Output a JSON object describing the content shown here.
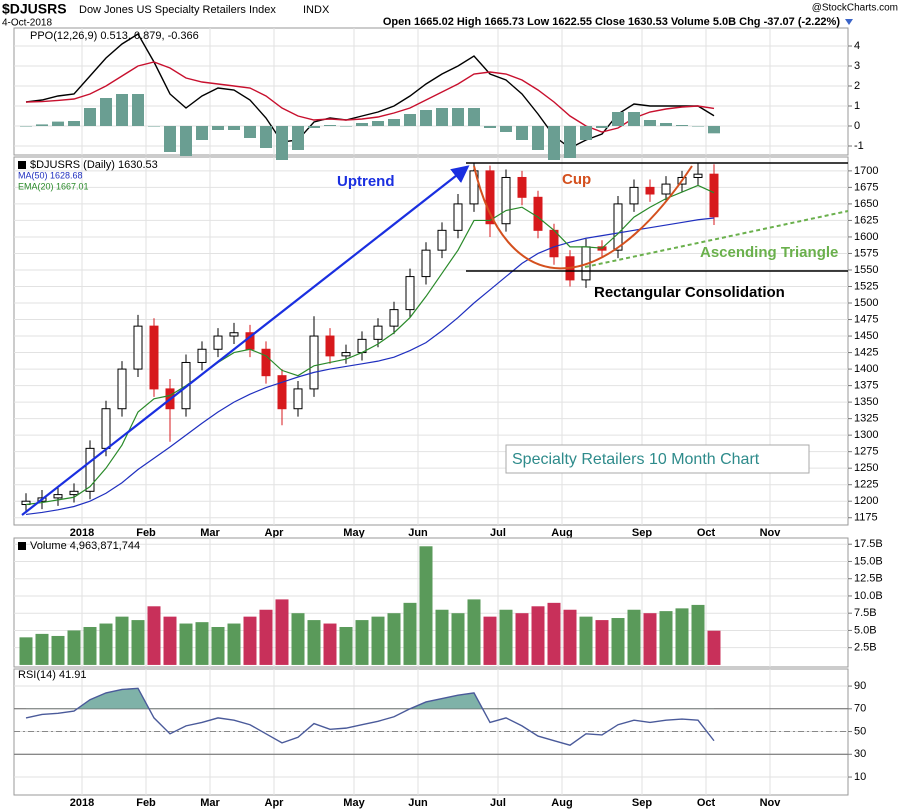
{
  "header": {
    "symbol": "$DJUSRS",
    "name": "Dow Jones US Specialty Retailers Index",
    "exchange": "INDX",
    "date": "4-Oct-2018",
    "quote": "Open 1665.02 High 1665.73 Low 1622.55 Close 1630.53 Volume 5.0B Chg -37.07 (-2.22%)",
    "credit": "@StockCharts.com"
  },
  "chart_data": [
    {
      "type": "line",
      "label": "PPO(12,26,9) 0.513, 0.879, -0.366",
      "ylim": [
        -1.45,
        4.9
      ],
      "yticks": [
        -1,
        0,
        1,
        2,
        3,
        4
      ],
      "grid": true,
      "series": [
        {
          "color": "#000000",
          "values": [
            1.2,
            1.3,
            1.5,
            1.6,
            2.5,
            3.4,
            4.1,
            4.6,
            3.2,
            1.6,
            0.9,
            1.5,
            1.9,
            1.8,
            1.3,
            0.4,
            -0.8,
            -0.7,
            0.2,
            0.4,
            0.3,
            0.5,
            0.7,
            1.0,
            1.5,
            2.1,
            2.6,
            3.0,
            3.5,
            2.6,
            2.3,
            1.6,
            0.6,
            -0.5,
            -1.1,
            -0.7,
            -0.4,
            0.6,
            1.1,
            1.0,
            1.0,
            1.0,
            1.0,
            0.513,
            null,
            null,
            null,
            null,
            null,
            null,
            null,
            null
          ]
        },
        {
          "color": "#c8102e",
          "values": [
            1.2,
            1.22,
            1.28,
            1.35,
            1.6,
            2.0,
            2.5,
            3.0,
            3.2,
            2.9,
            2.4,
            2.2,
            2.1,
            2.0,
            1.9,
            1.5,
            0.9,
            0.5,
            0.3,
            0.35,
            0.3,
            0.35,
            0.45,
            0.65,
            0.9,
            1.3,
            1.7,
            2.1,
            2.6,
            2.7,
            2.6,
            2.3,
            1.8,
            1.2,
            0.5,
            0.0,
            -0.3,
            -0.1,
            0.4,
            0.7,
            0.85,
            0.95,
            1.0,
            0.879,
            null,
            null,
            null,
            null,
            null,
            null,
            null,
            null
          ]
        },
        {
          "type": "bar",
          "color": "#6a9e92",
          "values": [
            0,
            0.08,
            0.22,
            0.25,
            0.9,
            1.4,
            1.6,
            1.6,
            0,
            -1.3,
            -1.5,
            -0.7,
            -0.2,
            -0.2,
            -0.6,
            -1.1,
            -1.7,
            -1.2,
            -0.1,
            0.05,
            0,
            0.15,
            0.25,
            0.35,
            0.6,
            0.8,
            0.9,
            0.9,
            0.9,
            -0.1,
            -0.3,
            -0.7,
            -1.2,
            -1.7,
            -1.6,
            -0.7,
            -0.1,
            0.7,
            0.7,
            0.3,
            0.15,
            0.05,
            0,
            -0.366,
            null,
            null,
            null,
            null,
            null,
            null,
            null,
            null
          ]
        }
      ]
    },
    {
      "type": "candlestick",
      "label": "$DJUSRS (Daily) 1630.53",
      "categories": [
        null,
        null,
        null,
        null,
        "2018",
        null,
        null,
        null,
        "Feb",
        null,
        null,
        null,
        "Mar",
        null,
        null,
        null,
        "Apr",
        null,
        null,
        null,
        null,
        "May",
        null,
        null,
        null,
        "Jun",
        null,
        null,
        null,
        null,
        "Jul",
        null,
        null,
        null,
        "Aug",
        null,
        null,
        null,
        null,
        "Sep",
        null,
        null,
        null,
        "Oct",
        null,
        null,
        null,
        "Nov",
        null,
        null,
        null,
        null
      ],
      "ylim": [
        1164,
        1721
      ],
      "yticks": [
        1175,
        1200,
        1225,
        1250,
        1275,
        1300,
        1325,
        1350,
        1375,
        1400,
        1425,
        1450,
        1475,
        1500,
        1525,
        1550,
        1575,
        1600,
        1625,
        1650,
        1675,
        1700
      ],
      "grid": true,
      "up_color": "#000000",
      "down_color": "#d7191c",
      "open": [
        1195,
        1200,
        1205,
        1210,
        1215,
        1280,
        1340,
        1400,
        1465,
        1370,
        1340,
        1410,
        1430,
        1450,
        1455,
        1430,
        1390,
        1340,
        1370,
        1450,
        1420,
        1425,
        1445,
        1465,
        1490,
        1540,
        1580,
        1610,
        1650,
        1700,
        1620,
        1690,
        1660,
        1610,
        1570,
        1535,
        1585,
        1580,
        1650,
        1675,
        1665,
        1680,
        1690,
        1695,
        null,
        null,
        null,
        null,
        null,
        null,
        null,
        null
      ],
      "high": [
        1212,
        1217,
        1222,
        1227,
        1292,
        1352,
        1412,
        1482,
        1477,
        1385,
        1422,
        1442,
        1462,
        1470,
        1467,
        1442,
        1400,
        1382,
        1480,
        1462,
        1437,
        1457,
        1477,
        1502,
        1552,
        1592,
        1622,
        1665,
        1712,
        1708,
        1702,
        1700,
        1670,
        1620,
        1580,
        1597,
        1595,
        1662,
        1687,
        1687,
        1692,
        1700,
        1712,
        1710,
        null,
        null,
        null,
        null,
        null,
        null,
        null,
        null
      ],
      "low": [
        1183,
        1188,
        1193,
        1198,
        1203,
        1268,
        1328,
        1388,
        1358,
        1290,
        1328,
        1398,
        1418,
        1438,
        1418,
        1378,
        1315,
        1328,
        1358,
        1408,
        1408,
        1413,
        1433,
        1453,
        1478,
        1528,
        1568,
        1598,
        1638,
        1600,
        1608,
        1648,
        1598,
        1558,
        1525,
        1523,
        1568,
        1568,
        1638,
        1653,
        1653,
        1668,
        1678,
        1618,
        null,
        null,
        null,
        null,
        null,
        null,
        null,
        null
      ],
      "close": [
        1200,
        1205,
        1210,
        1215,
        1280,
        1340,
        1400,
        1465,
        1370,
        1340,
        1410,
        1430,
        1450,
        1455,
        1430,
        1390,
        1340,
        1370,
        1450,
        1420,
        1425,
        1445,
        1465,
        1490,
        1540,
        1580,
        1610,
        1650,
        1700,
        1620,
        1690,
        1660,
        1610,
        1570,
        1535,
        1585,
        1580,
        1650,
        1675,
        1665,
        1680,
        1690,
        1695,
        1630.53,
        null,
        null,
        null,
        null,
        null,
        null,
        null,
        null
      ],
      "series": [
        {
          "name": "MA(50) 1628.68",
          "color": "#1f2fbf",
          "values": [
            1180,
            1183,
            1187,
            1192,
            1200,
            1212,
            1228,
            1248,
            1265,
            1282,
            1300,
            1318,
            1335,
            1350,
            1362,
            1372,
            1380,
            1388,
            1395,
            1400,
            1404,
            1408,
            1412,
            1418,
            1428,
            1440,
            1458,
            1478,
            1500,
            1520,
            1540,
            1560,
            1575,
            1585,
            1592,
            1598,
            1602,
            1606,
            1610,
            1614,
            1618,
            1622,
            1626,
            1628.68,
            null,
            null,
            null,
            null,
            null,
            null,
            null,
            null
          ]
        },
        {
          "name": "EMA(20) 1667.01",
          "color": "#2a8a2a",
          "values": [
            1195,
            1198,
            1202,
            1206,
            1222,
            1250,
            1285,
            1335,
            1355,
            1360,
            1375,
            1392,
            1410,
            1425,
            1430,
            1420,
            1398,
            1390,
            1405,
            1410,
            1415,
            1425,
            1438,
            1455,
            1478,
            1510,
            1545,
            1580,
            1625,
            1625,
            1640,
            1645,
            1630,
            1610,
            1585,
            1585,
            1583,
            1605,
            1630,
            1645,
            1658,
            1668,
            1678,
            1667.01,
            null,
            null,
            null,
            null,
            null,
            null,
            null,
            null
          ]
        }
      ],
      "annotations": [
        "Uptrend",
        "Cup",
        "Ascending Triangle",
        "Rectangular Consolidation",
        "Specialty Retailers 10 Month Chart"
      ]
    },
    {
      "type": "bar",
      "label": "Volume 4,963,871,744",
      "ylim": [
        -0.3,
        18.4
      ],
      "yticks": [
        {
          "value": 2.5,
          "label": "2.5B"
        },
        {
          "value": 5,
          "label": "5.0B"
        },
        {
          "value": 7.5,
          "label": "7.5B"
        },
        {
          "value": 10,
          "label": "10.0B"
        },
        {
          "value": 12.5,
          "label": "12.5B"
        },
        {
          "value": 15,
          "label": "15.0B"
        },
        {
          "value": 17.5,
          "label": "17.5B"
        }
      ],
      "grid": true,
      "up_color": "#5a9a5a",
      "down_color": "#c8305a",
      "values": [
        4,
        4.5,
        4.2,
        5,
        5.5,
        6,
        7,
        6.5,
        8.5,
        7,
        6,
        6.2,
        5.5,
        6,
        7,
        8,
        9.5,
        7.5,
        6.5,
        6,
        5.5,
        6.5,
        7,
        7.5,
        9,
        17.2,
        8,
        7.5,
        9.5,
        7,
        8,
        7.5,
        8.5,
        9,
        8,
        7,
        6.5,
        6.8,
        8,
        7.5,
        7.8,
        8.2,
        8.7,
        4.96,
        null,
        null,
        null,
        null,
        null,
        null,
        null,
        null
      ]
    },
    {
      "type": "line",
      "label": "RSI(14) 41.91",
      "categories": [
        null,
        null,
        null,
        null,
        "2018",
        null,
        null,
        null,
        "Feb",
        null,
        null,
        null,
        "Mar",
        null,
        null,
        null,
        "Apr",
        null,
        null,
        null,
        null,
        "May",
        null,
        null,
        null,
        "Jun",
        null,
        null,
        null,
        null,
        "Jul",
        null,
        null,
        null,
        "Aug",
        null,
        null,
        null,
        null,
        "Sep",
        null,
        null,
        null,
        "Oct",
        null,
        null,
        null,
        "Nov",
        null,
        null,
        null,
        null
      ],
      "ylim": [
        -5.8,
        105
      ],
      "yticks": [
        10,
        30,
        50,
        70,
        90
      ],
      "grid": true,
      "bands": [
        30,
        70
      ],
      "midline": 50,
      "series": [
        {
          "color": "#4a5a9a",
          "fill": "#7fb2a8",
          "values": [
            62,
            65,
            66,
            68,
            78,
            84,
            87,
            88,
            62,
            48,
            55,
            58,
            62,
            60,
            56,
            48,
            40,
            45,
            57,
            52,
            53,
            56,
            59,
            63,
            70,
            76,
            79,
            82,
            84,
            58,
            62,
            55,
            46,
            42,
            38,
            48,
            47,
            56,
            60,
            58,
            60,
            61,
            60,
            41.91,
            null,
            null,
            null,
            null,
            null,
            null,
            null,
            null
          ]
        }
      ]
    }
  ]
}
